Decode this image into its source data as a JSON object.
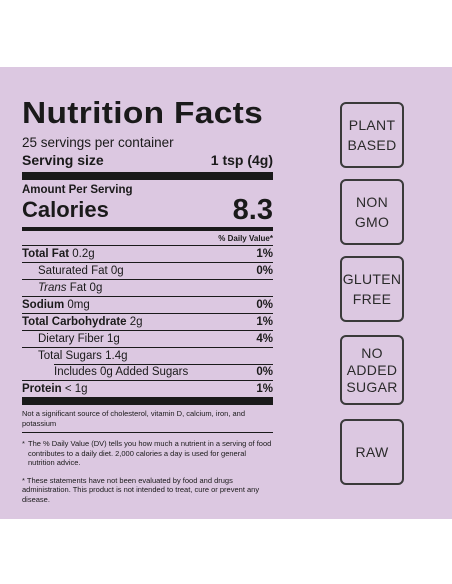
{
  "nutrition": {
    "title": "Nutrition Facts",
    "servings_per_container": "25 servings per container",
    "serving_size_label": "Serving size",
    "serving_size_value": "1 tsp (4g)",
    "amount_per_serving": "Amount Per Serving",
    "calories_label": "Calories",
    "calories_value": "8.3",
    "daily_value_header": "% Daily Value*",
    "rows": [
      {
        "bold_label": "Total Fat",
        "amount": "0.2g",
        "pct": "1%"
      },
      {
        "label": "Saturated Fat 0g",
        "pct": "0%"
      },
      {
        "italic_label": "Trans",
        "amount": "Fat 0g",
        "pct": ""
      },
      {
        "bold_label": "Sodium",
        "amount": "0mg",
        "pct": "0%"
      },
      {
        "bold_label": "Total Carbohydrate",
        "amount": "2g",
        "pct": "1%"
      },
      {
        "label": "Dietary Fiber 1g",
        "pct": "4%"
      },
      {
        "label": "Total Sugars 1.4g",
        "pct": ""
      },
      {
        "label": "Includes 0g Added Sugars",
        "pct": "0%"
      },
      {
        "bold_label": "Protein",
        "amount": "< 1g",
        "pct": "1%"
      }
    ],
    "not_significant": "Not a significant source of cholesterol, vitamin D, calcium, iron, and potassium",
    "dv_note_star": "*",
    "dv_note": "The % Daily Value (DV) tells you how much a nutrient in a serving of food contributes to a daily diet. 2,000 calories a day is used for general nutrition advice.",
    "fda_note": "* These statements have not been evaluated by food and drugs administration. This product is not intended to treat, cure or prevent any disease."
  },
  "badges": [
    {
      "text": "PLANT\nBASED"
    },
    {
      "text": "NON\nGMO"
    },
    {
      "text": "GLUTEN\nFREE"
    },
    {
      "text": "NO\nADDED\nSUGAR"
    },
    {
      "text": "RAW"
    }
  ],
  "colors": {
    "panel_background": "#dcc8e1",
    "ink": "#1a1a1a"
  }
}
